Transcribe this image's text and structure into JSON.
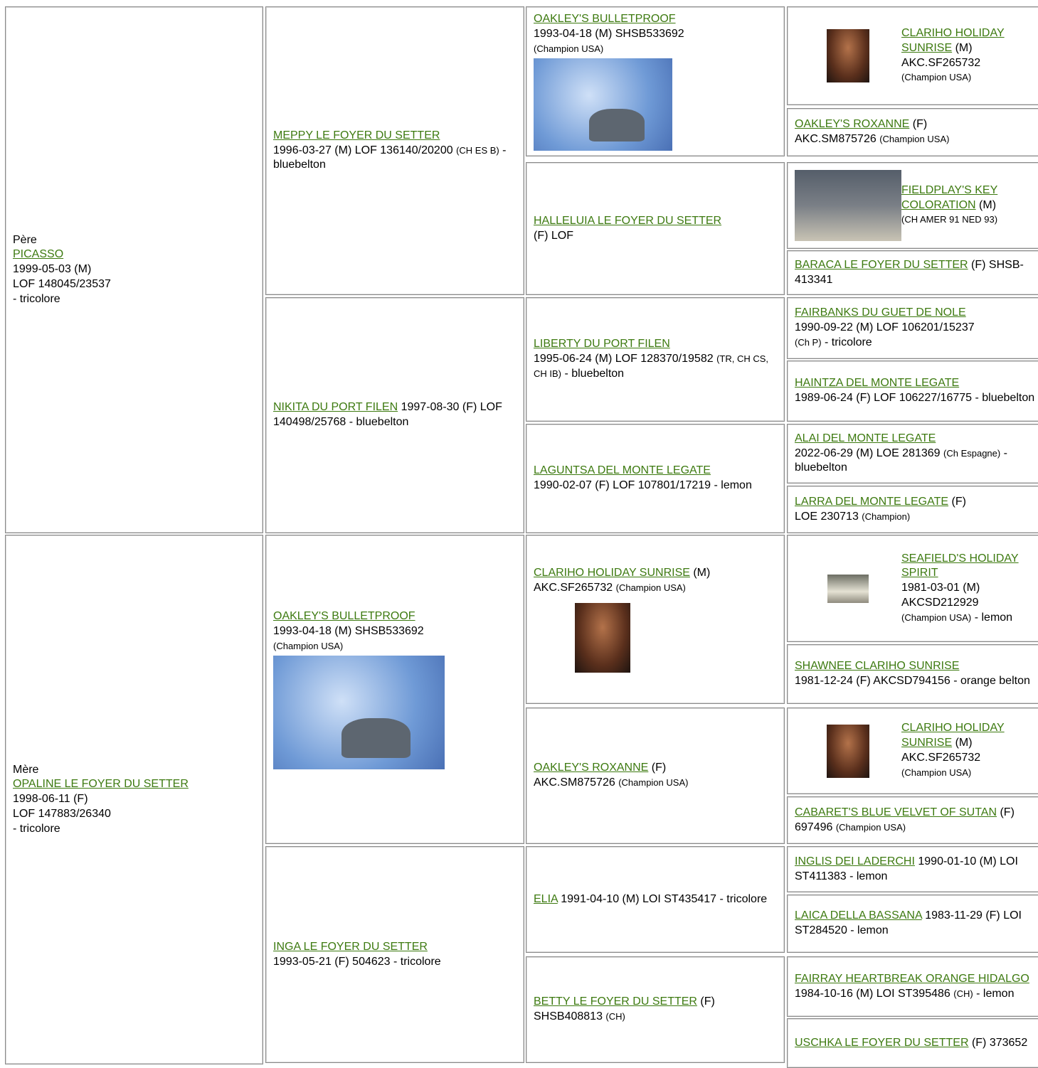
{
  "cells": [
    {
      "lines": [
        [
          {
            "text": "Père"
          }
        ],
        [
          {
            "text": "PICASSO",
            "kind": "link"
          }
        ],
        [
          {
            "text": "1999-05-03 (M)"
          }
        ],
        [
          {
            "text": "LOF 148045/23537"
          }
        ],
        [
          {
            "text": "- tricolore"
          }
        ]
      ]
    },
    {
      "lines": [
        [
          {
            "text": "Mère"
          }
        ],
        [
          {
            "text": "OPALINE LE FOYER DU SETTER",
            "kind": "link"
          }
        ],
        [
          {
            "text": "1998-06-11 (F)"
          }
        ],
        [
          {
            "text": "LOF 147883/26340"
          }
        ],
        [
          {
            "text": "- tricolore"
          }
        ]
      ]
    },
    {
      "lines": [
        [
          {
            "text": "MEPPY LE FOYER DU SETTER",
            "kind": "link"
          }
        ],
        [
          {
            "text": "1996-03-27 (M) LOF 136140/20200 "
          },
          {
            "text": "(CH ES B)",
            "kind": "small"
          },
          {
            "text": " - bluebelton"
          }
        ]
      ]
    },
    {
      "lines": [
        [
          {
            "text": "NIKITA DU PORT FILEN",
            "kind": "link"
          },
          {
            "text": " 1997-08-30 (F) LOF 140498/25768 - bluebelton"
          }
        ]
      ]
    },
    {
      "lines": [
        [
          {
            "text": "OAKLEY'S BULLETPROOF",
            "kind": "link"
          }
        ],
        [
          {
            "text": "1993-04-18 (M) SHSB533692"
          }
        ],
        [
          {
            "text": "(Champion USA)",
            "kind": "small"
          }
        ]
      ]
    },
    {
      "lines": [
        [
          {
            "text": "INGA LE FOYER DU SETTER",
            "kind": "link"
          }
        ],
        [
          {
            "text": "1993-05-21 (F) 504623 - tricolore"
          }
        ]
      ]
    },
    {
      "lines": [
        [
          {
            "text": "OAKLEY'S BULLETPROOF",
            "kind": "link"
          }
        ],
        [
          {
            "text": "1993-04-18 (M) SHSB533692"
          }
        ],
        [
          {
            "text": "(Champion USA)",
            "kind": "small"
          }
        ]
      ]
    },
    {
      "lines": [
        [
          {
            "text": "HALLELUIA LE FOYER DU SETTER",
            "kind": "link"
          }
        ],
        [
          {
            "text": "(F) LOF"
          }
        ]
      ]
    },
    {
      "lines": [
        [
          {
            "text": "LIBERTY DU PORT FILEN",
            "kind": "link"
          }
        ],
        [
          {
            "text": "1995-06-24 (M) LOF 128370/19582 "
          },
          {
            "text": "(TR, CH CS, CH IB)",
            "kind": "small"
          },
          {
            "text": " - bluebelton"
          }
        ]
      ]
    },
    {
      "lines": [
        [
          {
            "text": "LAGUNTSA DEL MONTE LEGATE",
            "kind": "link"
          }
        ],
        [
          {
            "text": "1990-02-07 (F) LOF 107801/17219 - lemon"
          }
        ]
      ]
    },
    {
      "lines": [
        [
          {
            "text": "CLARIHO HOLIDAY SUNRISE",
            "kind": "link"
          },
          {
            "text": " (M)"
          }
        ],
        [
          {
            "text": "AKC.SF265732 "
          },
          {
            "text": "(Champion USA)",
            "kind": "small"
          }
        ]
      ]
    },
    {
      "lines": [
        [
          {
            "text": "OAKLEY'S ROXANNE",
            "kind": "link"
          },
          {
            "text": " (F)"
          }
        ],
        [
          {
            "text": "AKC.SM875726 "
          },
          {
            "text": "(Champion USA)",
            "kind": "small"
          }
        ]
      ]
    },
    {
      "lines": [
        [
          {
            "text": "ELIA",
            "kind": "link"
          },
          {
            "text": " 1991-04-10 (M) LOI ST435417 - tricolore"
          }
        ]
      ]
    },
    {
      "lines": [
        [
          {
            "text": "BETTY LE FOYER DU SETTER",
            "kind": "link"
          },
          {
            "text": " (F)"
          }
        ],
        [
          {
            "text": "SHSB408813 "
          },
          {
            "text": "(CH)",
            "kind": "small"
          }
        ]
      ]
    },
    {
      "lines": [
        [
          {
            "text": "CLARIHO HOLIDAY SUNRISE",
            "kind": "link"
          },
          {
            "text": " (M)"
          }
        ],
        [
          {
            "text": "AKC.SF265732"
          }
        ],
        [
          {
            "text": "(Champion USA)",
            "kind": "small"
          }
        ]
      ]
    },
    {
      "lines": [
        [
          {
            "text": "OAKLEY'S ROXANNE",
            "kind": "link"
          },
          {
            "text": " (F)"
          }
        ],
        [
          {
            "text": "AKC.SM875726 "
          },
          {
            "text": "(Champion USA)",
            "kind": "small"
          }
        ]
      ]
    },
    {
      "lines": [
        [
          {
            "text": "FIELDPLAY'S KEY COLORATION",
            "kind": "link"
          },
          {
            "text": " (M)"
          }
        ],
        [
          {
            "text": "(CH AMER 91 NED 93)",
            "kind": "small"
          }
        ]
      ]
    },
    {
      "lines": [
        [
          {
            "text": "BARACA LE FOYER DU SETTER",
            "kind": "link"
          },
          {
            "text": " (F) SHSB-413341"
          }
        ]
      ]
    },
    {
      "lines": [
        [
          {
            "text": "FAIRBANKS DU GUET DE NOLE",
            "kind": "link"
          }
        ],
        [
          {
            "text": "1990-09-22 (M) LOF 106201/15237"
          }
        ],
        [
          {
            "text": "(Ch P)",
            "kind": "small"
          },
          {
            "text": " - tricolore"
          }
        ]
      ]
    },
    {
      "lines": [
        [
          {
            "text": "HAINTZA DEL MONTE LEGATE",
            "kind": "link"
          }
        ],
        [
          {
            "text": "1989-06-24 (F) LOF 106227/16775 - bluebelton"
          }
        ]
      ]
    },
    {
      "lines": [
        [
          {
            "text": "ALAI DEL MONTE LEGATE",
            "kind": "link"
          }
        ],
        [
          {
            "text": "2022-06-29 (M) LOE 281369 "
          },
          {
            "text": "(Ch Espagne)",
            "kind": "small"
          },
          {
            "text": " - bluebelton"
          }
        ]
      ]
    },
    {
      "lines": [
        [
          {
            "text": "LARRA DEL MONTE LEGATE",
            "kind": "link"
          },
          {
            "text": " (F)"
          }
        ],
        [
          {
            "text": "LOE 230713 "
          },
          {
            "text": "(Champion)",
            "kind": "small"
          }
        ]
      ]
    },
    {
      "lines": [
        [
          {
            "text": "SEAFIELD'S HOLIDAY SPIRIT",
            "kind": "link"
          }
        ],
        [
          {
            "text": "1981-03-01 (M)"
          }
        ],
        [
          {
            "text": "AKCSD212929"
          }
        ],
        [
          {
            "text": "(Champion USA)",
            "kind": "small"
          },
          {
            "text": " - lemon"
          }
        ]
      ]
    },
    {
      "lines": [
        [
          {
            "text": "SHAWNEE CLARIHO SUNRISE",
            "kind": "link"
          }
        ],
        [
          {
            "text": "1981-12-24 (F) AKCSD794156 - orange belton"
          }
        ]
      ]
    },
    {
      "lines": [
        [
          {
            "text": "CLARIHO HOLIDAY SUNRISE",
            "kind": "link"
          },
          {
            "text": " (M)"
          }
        ],
        [
          {
            "text": "AKC.SF265732"
          }
        ],
        [
          {
            "text": "(Champion USA)",
            "kind": "small"
          }
        ]
      ]
    },
    {
      "lines": [
        [
          {
            "text": "CABARET'S BLUE VELVET OF SUTAN",
            "kind": "link"
          },
          {
            "text": " (F) 697496 "
          },
          {
            "text": "(Champion USA)",
            "kind": "small"
          }
        ]
      ]
    },
    {
      "lines": [
        [
          {
            "text": "INGLIS DEI LADERCHI",
            "kind": "link"
          },
          {
            "text": " 1990-01-10 (M) LOI ST411383 - lemon"
          }
        ]
      ]
    },
    {
      "lines": [
        [
          {
            "text": "LAICA DELLA BASSANA",
            "kind": "link"
          },
          {
            "text": " 1983-11-29 (F) LOI ST284520 - lemon"
          }
        ]
      ]
    },
    {
      "lines": [
        [
          {
            "text": "FAIRRAY HEARTBREAK ORANGE HIDALGO",
            "kind": "link"
          },
          {
            "text": " 1984-10-16 (M) LOI ST395486 "
          },
          {
            "text": "(CH)",
            "kind": "small"
          },
          {
            "text": " - lemon"
          }
        ]
      ]
    },
    {
      "lines": [
        [
          {
            "text": "USCHKA LE FOYER DU SETTER",
            "kind": "link"
          },
          {
            "text": " (F) 373652"
          }
        ]
      ]
    }
  ]
}
